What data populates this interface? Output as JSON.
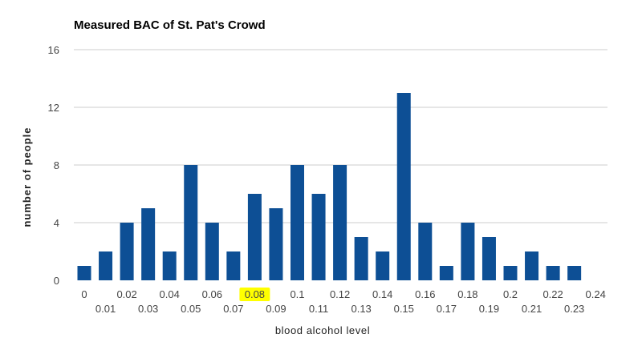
{
  "chart_data": {
    "type": "bar",
    "title": "Measured BAC of St. Pat's Crowd",
    "xlabel": "blood alcohol level",
    "ylabel": "number of people",
    "categories": [
      "0",
      "0.01",
      "0.02",
      "0.03",
      "0.04",
      "0.05",
      "0.06",
      "0.07",
      "0.08",
      "0.09",
      "0.1",
      "0.11",
      "0.12",
      "0.13",
      "0.14",
      "0.15",
      "0.16",
      "0.17",
      "0.18",
      "0.19",
      "0.2",
      "0.21",
      "0.22",
      "0.23",
      "0.24"
    ],
    "values": [
      1,
      2,
      4,
      5,
      2,
      8,
      4,
      2,
      6,
      5,
      8,
      6,
      8,
      3,
      2,
      13,
      4,
      1,
      4,
      3,
      1,
      2,
      1,
      1,
      0
    ],
    "ylim": [
      0,
      16
    ],
    "yticks": [
      0,
      4,
      8,
      12,
      16
    ],
    "grid": true,
    "legend": "none",
    "bar_color": "#0d4f95",
    "gridline_color": "#cccccc",
    "highlighted_tick": "0.08",
    "highlight_color": "#ffff00"
  }
}
